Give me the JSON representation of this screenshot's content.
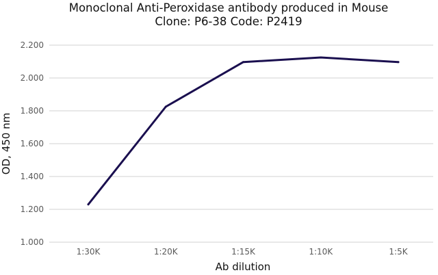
{
  "chart_data": {
    "type": "line",
    "title": "Monoclonal Anti-Peroxidase antibody produced in Mouse",
    "subtitle": "Clone: P6-38  Code: P2419",
    "xlabel": "Ab dilution",
    "ylabel": "OD, 450 nm",
    "categories": [
      "1:30K",
      "1:20K",
      "1:15K",
      "1:10K",
      "1:5K"
    ],
    "series": [
      {
        "values": [
          1.23,
          1.825,
          2.097,
          2.125,
          2.097
        ],
        "color": "#1a0f4f"
      }
    ],
    "ylim": [
      1.0,
      2.2
    ],
    "yticks": [
      1.0,
      1.2,
      1.4,
      1.6,
      1.8,
      2.0,
      2.2
    ],
    "ytick_labels": [
      "1.000",
      "1.200",
      "1.400",
      "1.600",
      "1.800",
      "2.000",
      "2.200"
    ],
    "grid": true,
    "legend": "none"
  }
}
